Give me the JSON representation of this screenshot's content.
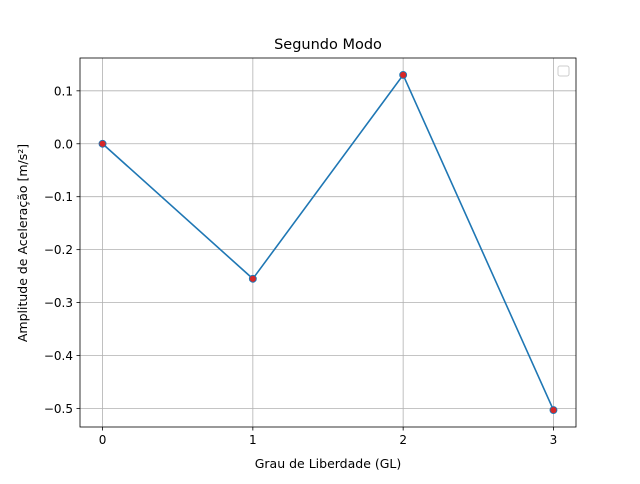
{
  "chart_data": {
    "type": "line",
    "title": "Segundo Modo",
    "xlabel": "Grau de Liberdade (GL)",
    "ylabel": "Amplitude de Aceleração [m/s²]",
    "x": [
      0,
      1,
      2,
      3
    ],
    "series": [
      {
        "values": [
          0.0,
          -0.255,
          0.13,
          -0.503
        ],
        "color": "#1f77b4",
        "marker_color": "#d62728"
      }
    ],
    "xticks": [
      0,
      1,
      2,
      3
    ],
    "xtick_labels": [
      "0",
      "1",
      "2",
      "3"
    ],
    "yticks": [
      0.1,
      0.0,
      -0.1,
      -0.2,
      -0.3,
      -0.4,
      -0.5
    ],
    "ytick_labels": [
      "0.1",
      "0.0",
      "−0.1",
      "−0.2",
      "−0.3",
      "−0.4",
      "−0.5"
    ],
    "xlim": [
      -0.15,
      3.15
    ],
    "ylim": [
      -0.535,
      0.162
    ],
    "grid": true,
    "legend": "top-right, empty"
  }
}
